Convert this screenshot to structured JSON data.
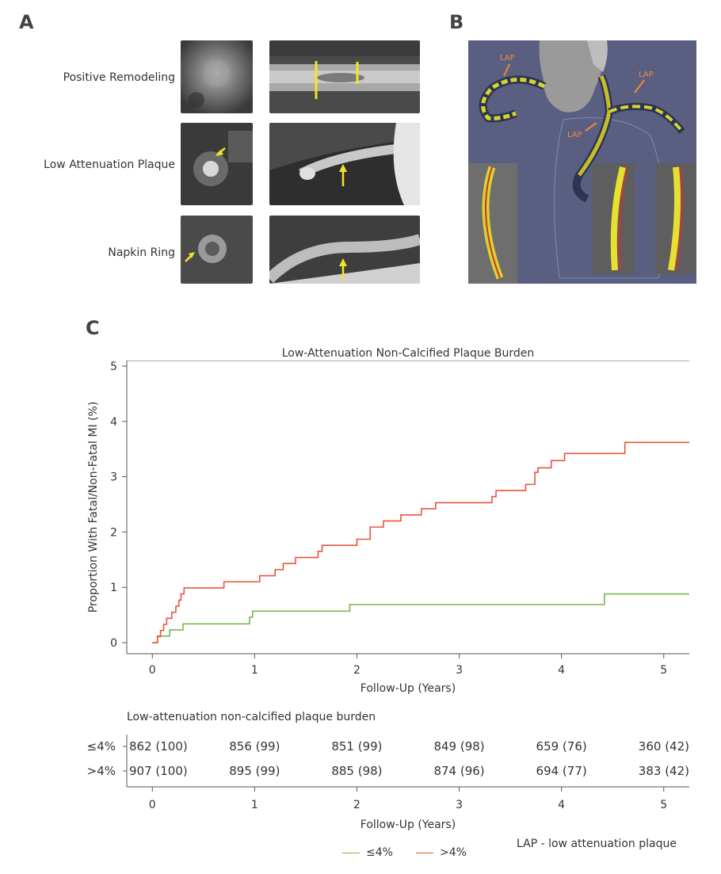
{
  "panelA": {
    "letter": "A",
    "rows": [
      {
        "label": "Positive Remodeling"
      },
      {
        "label": "Low Attenuation Plaque"
      },
      {
        "label": "Napkin Ring"
      }
    ]
  },
  "panelB": {
    "letter": "B",
    "annotations": [
      "LAP",
      "LAP",
      "LAP"
    ]
  },
  "panelC": {
    "letter": "C"
  },
  "chart_data": {
    "type": "line",
    "title": "Low-Attenuation Non-Calcified Plaque Burden",
    "xlabel": "Follow-Up (Years)",
    "ylabel": "Proportion With Fatal/Non-Fatal MI (%)",
    "xlim": [
      -0.25,
      5.25
    ],
    "ylim": [
      -0.2,
      5.1
    ],
    "xticks": [
      "0",
      "1",
      "2",
      "3",
      "4",
      "5"
    ],
    "yticks": [
      "0",
      "1",
      "2",
      "3",
      "4",
      "5"
    ],
    "grid": false,
    "series": [
      {
        "name": "≤4%",
        "color": "#7ab648",
        "steps": [
          [
            0,
            0
          ],
          [
            0.05,
            0.12
          ],
          [
            0.17,
            0.23
          ],
          [
            0.3,
            0.34
          ],
          [
            0.95,
            0.46
          ],
          [
            0.98,
            0.57
          ],
          [
            1.93,
            0.69
          ],
          [
            4.42,
            0.88
          ],
          [
            5.25,
            0.88
          ]
        ]
      },
      {
        "name": ">4%",
        "color": "#e8553b",
        "steps": [
          [
            0,
            0
          ],
          [
            0.05,
            0.11
          ],
          [
            0.08,
            0.22
          ],
          [
            0.11,
            0.33
          ],
          [
            0.14,
            0.44
          ],
          [
            0.19,
            0.55
          ],
          [
            0.23,
            0.66
          ],
          [
            0.26,
            0.77
          ],
          [
            0.28,
            0.88
          ],
          [
            0.31,
            0.99
          ],
          [
            0.7,
            1.1
          ],
          [
            1.05,
            1.21
          ],
          [
            1.2,
            1.32
          ],
          [
            1.28,
            1.43
          ],
          [
            1.4,
            1.54
          ],
          [
            1.62,
            1.65
          ],
          [
            1.66,
            1.76
          ],
          [
            2.0,
            1.87
          ],
          [
            2.13,
            2.09
          ],
          [
            2.26,
            2.2
          ],
          [
            2.43,
            2.31
          ],
          [
            2.63,
            2.42
          ],
          [
            2.77,
            2.53
          ],
          [
            3.32,
            2.64
          ],
          [
            3.36,
            2.75
          ],
          [
            3.65,
            2.86
          ],
          [
            3.74,
            3.08
          ],
          [
            3.77,
            3.16
          ],
          [
            3.9,
            3.29
          ],
          [
            4.03,
            3.42
          ],
          [
            4.62,
            3.62
          ],
          [
            5.25,
            3.62
          ]
        ]
      }
    ]
  },
  "risk_table": {
    "title": "Low-attenuation non-calcified plaque burden",
    "xlabel": "Follow-Up (Years)",
    "xticks": [
      "0",
      "1",
      "2",
      "3",
      "4",
      "5"
    ],
    "rows": [
      {
        "label": "≤4%",
        "values": [
          "862 (100)",
          "856 (99)",
          "851 (99)",
          "849 (98)",
          "659 (76)",
          "360 (42)"
        ]
      },
      {
        "label": ">4%",
        "values": [
          "907 (100)",
          "895 (99)",
          "885 (98)",
          "874 (96)",
          "694 (77)",
          "383 (42)"
        ]
      }
    ]
  },
  "legend": [
    {
      "label": "≤4%",
      "color": "#7ab648"
    },
    {
      "label": ">4%",
      "color": "#e8553b"
    }
  ],
  "footnote": "LAP - low attenuation plaque"
}
